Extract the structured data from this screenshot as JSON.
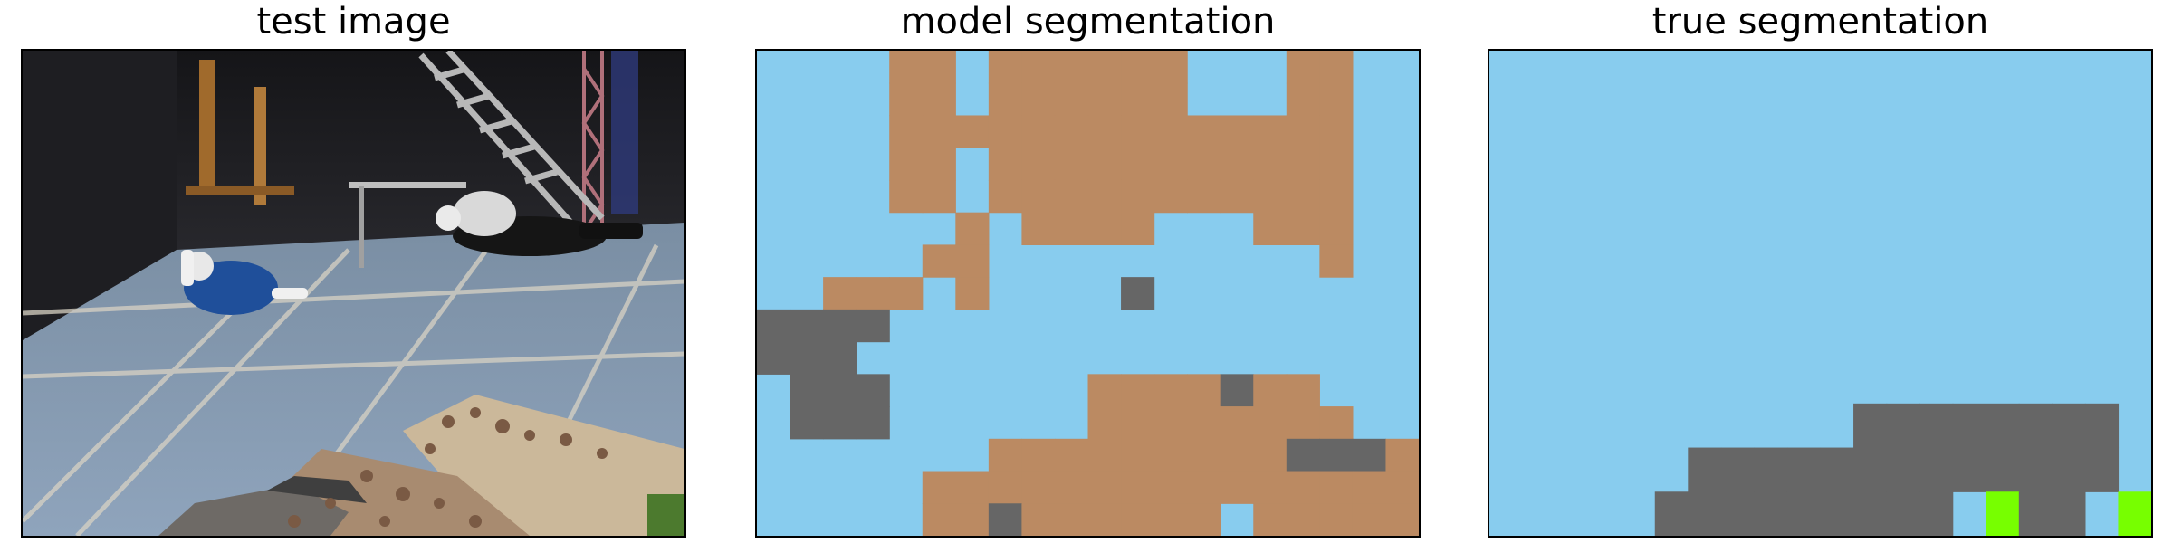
{
  "panels": [
    {
      "title": "test image"
    },
    {
      "title": "model segmentation"
    },
    {
      "title": "true segmentation"
    }
  ],
  "colors": {
    "sky_blue": "#88ccee",
    "tan": "#bb8a62",
    "dark_gray": "#666666",
    "lime": "#77ff00"
  },
  "model_segmentation": {
    "grid_cols": 20,
    "grid_rows": 15,
    "cells": [
      "BBBBTTBTTTTTTBBBTTBB",
      "BBBBTTBTTTTTTBBBTTBB",
      "BBBBTTTTTTTTTTTTTTBB",
      "BBBBTTBTTTTTTTTTTTBB",
      "BBBBTTBTTTTTTTTTTTBB",
      "BBBBBBTBTTTTBBBTTTBB",
      "BBBBBTTBBBBBBBBBBTBB",
      "BBTTTBTBBBBGBBBBBBBB",
      "GGGGBBBBBBBBBBBBBBBB",
      "GGGBBBBBBBBBBBBBBBBB",
      "BGGGBBBBBBTTTTGTTBBB",
      "BGGGBBBBBBTTTTTTTTBB",
      "BBBBBBBTTTTTTTTTGGGT",
      "BBBBBTTTTTTTTTTTTTTT",
      "BBBBBTTGTTTTTTBTTTTT"
    ]
  },
  "true_segmentation": {
    "grid_cols": 20,
    "grid_rows": 11,
    "cells": [
      "BBBBBBBBBBBBBBBBBBBB",
      "BBBBBBBBBBBBBBBBBBBB",
      "BBBBBBBBBBBBBBBBBBBB",
      "BBBBBBBBBBBBBBBBBBBB",
      "BBBBBBBBBBBBBBBBBBBB",
      "BBBBBBBBBBBBBBBBBBBB",
      "BBBBBBBBBBBBBBBBBBBB",
      "BBBBBBBBBBBBBBBBBBBB",
      "BBBBBBBBBBBGGGGGGGGB",
      "BBBBBBGGGGGGGGGGGGGB",
      "BBBBBGGGGGGGGGBLGGBL"
    ]
  }
}
